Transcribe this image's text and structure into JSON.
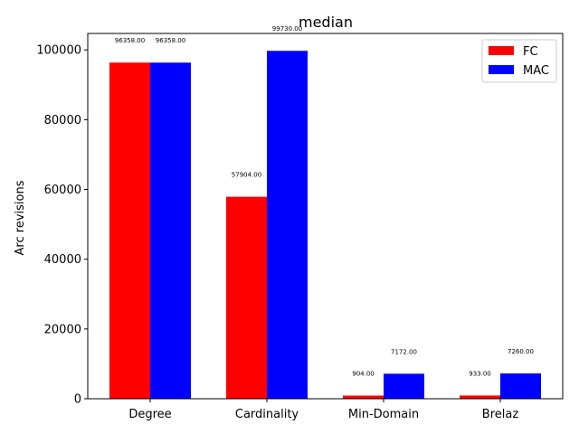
{
  "chart_data": {
    "type": "bar",
    "title": "median",
    "xlabel": "",
    "ylabel": "Arc revisions",
    "categories": [
      "Degree",
      "Cardinality",
      "Min-Domain",
      "Brelaz"
    ],
    "series": [
      {
        "name": "FC",
        "color": "#ff0000",
        "values": [
          96358.0,
          57904.0,
          904.0,
          933.0
        ],
        "labels": [
          "96358.00",
          "57904.00",
          "904.00",
          "933.00"
        ]
      },
      {
        "name": "MAC",
        "color": "#0000ff",
        "values": [
          96358.0,
          99730.0,
          7172.0,
          7260.0
        ],
        "labels": [
          "96358.00",
          "99730.00",
          "7172.00",
          "7260.00"
        ]
      }
    ],
    "ylim": [
      0,
      104716
    ],
    "yticks": [
      0,
      20000,
      40000,
      60000,
      80000,
      100000
    ],
    "ytick_labels": [
      "0",
      "20000",
      "40000",
      "60000",
      "80000",
      "100000"
    ],
    "legend_position": "top-right",
    "grid": false
  }
}
